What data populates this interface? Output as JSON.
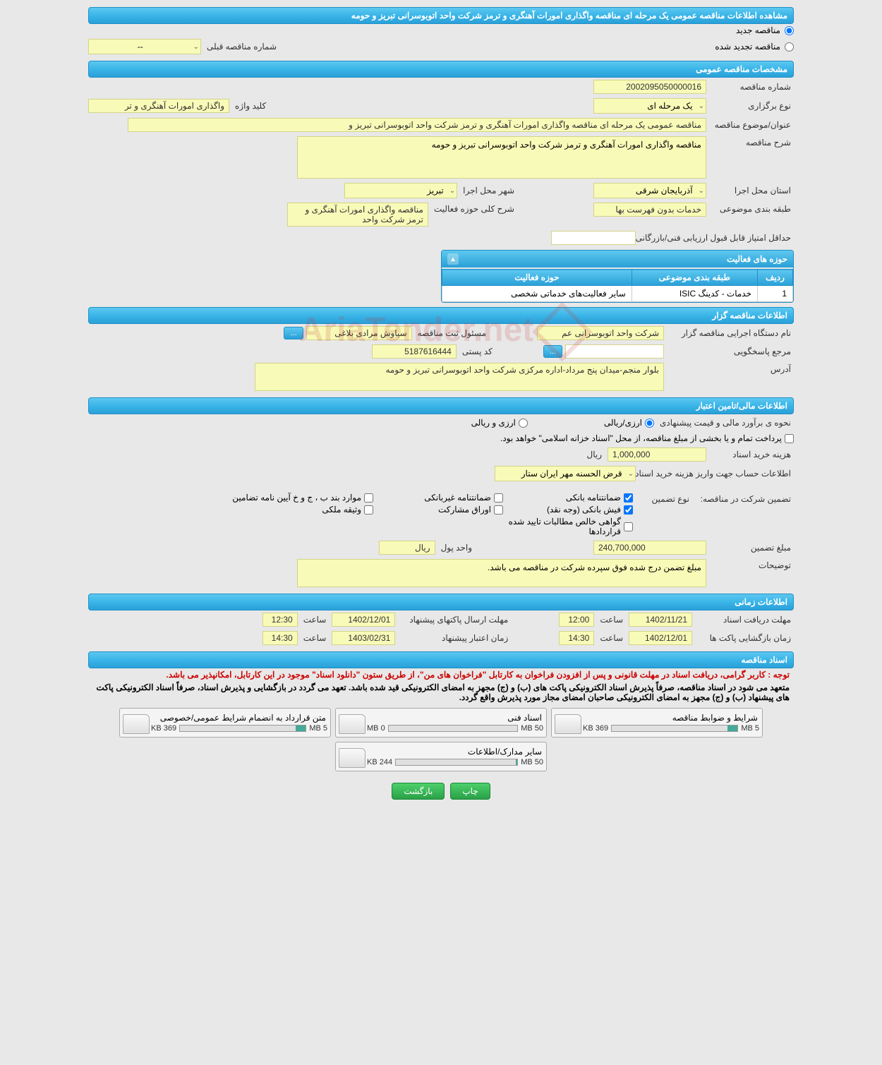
{
  "title": "مشاهده اطلاعات مناقصه عمومی یک مرحله ای مناقصه واگذاری امورات آهنگری و ترمز شرکت واحد اتوبوسرانی تبریز و حومه",
  "radios": {
    "new": "مناقصه جدید",
    "renewed": "مناقصه تجدید شده"
  },
  "prev_tender_label": "شماره مناقصه قبلی",
  "prev_tender_value": "--",
  "sections": {
    "general": "مشخصات مناقصه عمومی",
    "organizer": "اطلاعات مناقصه گزار",
    "financial": "اطلاعات مالی/تامین اعتبار",
    "timing": "اطلاعات زمانی",
    "documents": "اسناد مناقصه"
  },
  "general": {
    "tender_no_label": "شماره مناقصه",
    "tender_no": "2002095050000016",
    "type_label": "نوع برگزاری",
    "type": "یک مرحله ای",
    "keyword_label": "کلید واژه",
    "keyword": "واگذاری امورات آهنگری و تر",
    "subject_label": "عنوان/موضوع مناقصه",
    "subject": "مناقصه عمومی یک مرحله ای مناقصه واگذاری امورات آهنگری و ترمز شرکت واحد اتوبوسرانی تبریز و",
    "desc_label": "شرح مناقصه",
    "desc": "مناقصه واگذاری امورات آهنگری و ترمز شرکت واحد اتوبوسرانی تبریز و حومه",
    "province_label": "استان محل اجرا",
    "province": "آذربایجان شرقی",
    "city_label": "شهر محل اجرا",
    "city": "تبریز",
    "category_label": "طبقه بندی موضوعی",
    "category": "خدمات بدون فهرست بها",
    "activity_desc_label": "شرح کلی حوزه فعالیت",
    "activity_desc": "مناقصه واگذاری امورات آهنگری و ترمز شرکت واحد",
    "min_score_label": "حداقل امتیاز قابل قبول ارزیابی فنی/بازرگانی",
    "min_score": "",
    "activities_panel": "حوزه های فعالیت",
    "table": {
      "h1": "ردیف",
      "h2": "طبقه بندی موضوعی",
      "h3": "حوزه فعالیت",
      "r1c1": "1",
      "r1c2": "خدمات - کدینگ ISIC",
      "r1c3": "سایر فعالیت‌های خدماتی شخصی"
    }
  },
  "organizer": {
    "exec_label": "نام دستگاه اجرایی مناقصه گزار",
    "exec": "شرکت واحد اتوبوسرانی عم",
    "reg_resp_label": "مسئول ثبت مناقصه",
    "reg_resp": "سیاوش مرادی بلاغی",
    "more": "...",
    "contact_label": "مرجع پاسخگویی",
    "contact": "",
    "postal_label": "کد پستی",
    "postal": "5187616444",
    "address_label": "آدرس",
    "address": "بلوار منجم-میدان پنج مرداد-اداره مرکزی شرکت واحد اتوبوسرانی تبریز و حومه"
  },
  "financial": {
    "estimate_label": "نحوه ی برآورد مالی و قیمت پیشنهادی",
    "opt_rial": "ارزی/ریالی",
    "opt_currency": "ارزی و ریالی",
    "treasury_note": "پرداخت تمام و یا بخشی از مبلغ مناقصه، از محل \"اسناد خزانه اسلامی\" خواهد بود.",
    "doc_price_label": "هزینه خرید اسناد",
    "doc_price": "1,000,000",
    "rial": "ریال",
    "account_label": "اطلاعات حساب جهت واریز هزینه خرید اسناد",
    "account": "قرض الحسنه مهر ایران ستار",
    "guarantee_title": "تضمین شرکت در مناقصه:",
    "guarantee_type_label": "نوع تضمین",
    "cb_bank": "ضمانتنامه بانکی",
    "cb_nonbank": "ضمانتنامه غیربانکی",
    "cb_bylaw": "موارد بند ب ، ج و خ آیین نامه تضامین",
    "cb_cash": "فیش بانکی (وجه نقد)",
    "cb_securities": "اوراق مشارکت",
    "cb_property": "وثیقه ملکی",
    "cb_receivables": "گواهی خالص مطالبات تایید شده قراردادها",
    "guarantee_amount_label": "مبلغ تضمین",
    "guarantee_amount": "240,700,000",
    "currency_unit_label": "واحد پول",
    "currency_unit": "ریال",
    "notes_label": "توضیحات",
    "notes": "مبلغ تضمن درج شده فوق سپرده شرکت در مناقصه می باشد."
  },
  "timing": {
    "receipt_label": "مهلت دریافت اسناد",
    "receipt_date": "1402/11/21",
    "receipt_time": "12:00",
    "time_label": "ساعت",
    "submit_label": "مهلت ارسال پاکتهای پیشنهاد",
    "submit_date": "1402/12/01",
    "submit_time": "12:30",
    "opening_label": "زمان بازگشایی پاکت ها",
    "opening_date": "1402/12/01",
    "opening_time": "14:30",
    "validity_label": "زمان اعتبار پیشنهاد",
    "validity_date": "1403/02/31",
    "validity_time": "14:30"
  },
  "documents": {
    "notice1": "توجه : کاربر گرامی، دریافت اسناد در مهلت قانونی و پس از افزودن فراخوان به کارتابل \"فراخوان های من\"، از طریق ستون \"دانلود اسناد\" موجود در این کارتابل، امکانپذیر می باشد.",
    "notice2": "متعهد می شود در اسناد مناقصه، صرفاً پذیرش اسناد الکترونیکی پاکت های (ب) و (ج) مجهز به امضای الکترونیکی قید شده باشد. تعهد می گردد در بازگشایی و پذیرش اسناد، صرفاً اسناد الکترونیکی پاکت های پیشنهاد (ب) و (ج) مجهز به امضای الکترونیکی صاحبان امضای مجاز مورد پذیرش واقع گردد.",
    "files": [
      {
        "title": "شرایط و ضوابط مناقصه",
        "size": "369 KB",
        "max": "5 MB",
        "pct": 8
      },
      {
        "title": "اسناد فنی",
        "size": "0 MB",
        "max": "50 MB",
        "pct": 0
      },
      {
        "title": "متن قرارداد به انضمام شرایط عمومی/خصوصی",
        "size": "369 KB",
        "max": "5 MB",
        "pct": 8
      },
      {
        "title": "سایر مدارک/اطلاعات",
        "size": "244 KB",
        "max": "50 MB",
        "pct": 1
      }
    ]
  },
  "footer": {
    "print": "چاپ",
    "back": "بازگشت"
  },
  "watermark": "AriaTender.net",
  "colors": {
    "header_bg": "#3ab5e8",
    "field_bg": "#f8fab8",
    "btn_green": "#2aa048"
  }
}
